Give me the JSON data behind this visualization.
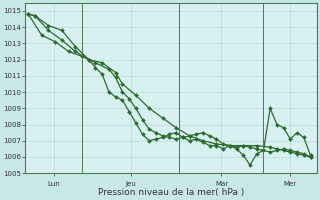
{
  "background_color": "#c8e8e8",
  "plot_bg_color": "#d8f0f0",
  "grid_color": "#b0d8d8",
  "line_color": "#2d6a2d",
  "xlabel": "Pression niveau de la mer( hPa )",
  "ylim": [
    1005,
    1015.5
  ],
  "yticks": [
    1005,
    1006,
    1007,
    1008,
    1009,
    1010,
    1011,
    1012,
    1013,
    1014,
    1015
  ],
  "xtick_labels": [
    "Lun",
    "Jeu",
    "Mar",
    "Mer"
  ],
  "series1_x": [
    0,
    1,
    3,
    5,
    7,
    9,
    10,
    11,
    12,
    13,
    14,
    15,
    16,
    17,
    18,
    19,
    20,
    21,
    22,
    23,
    24,
    25,
    26,
    27,
    28,
    29,
    30,
    31,
    32,
    33,
    34,
    35,
    36,
    37,
    38,
    39,
    40,
    41,
    42
  ],
  "series1_y": [
    1014.8,
    1014.7,
    1014.1,
    1013.8,
    1012.8,
    1012.0,
    1011.5,
    1011.1,
    1010.0,
    1009.7,
    1009.5,
    1008.8,
    1008.1,
    1007.4,
    1007.0,
    1007.1,
    1007.2,
    1007.4,
    1007.5,
    1007.2,
    1007.0,
    1007.1,
    1006.9,
    1006.7,
    1006.7,
    1006.5,
    1006.7,
    1006.5,
    1006.1,
    1005.5,
    1006.2,
    1006.4,
    1009.0,
    1008.0,
    1007.8,
    1007.1,
    1007.5,
    1007.2,
    1006.1
  ],
  "series2_x": [
    0,
    1,
    3,
    5,
    7,
    9,
    11,
    13,
    14,
    16,
    18,
    20,
    22,
    24,
    26,
    28,
    30,
    32,
    34,
    36,
    37,
    38,
    39,
    40,
    41,
    42
  ],
  "series2_y": [
    1014.8,
    1014.7,
    1013.8,
    1013.2,
    1012.5,
    1012.0,
    1011.8,
    1011.2,
    1010.5,
    1009.8,
    1009.0,
    1008.4,
    1007.8,
    1007.3,
    1007.0,
    1006.8,
    1006.7,
    1006.7,
    1006.7,
    1006.6,
    1006.5,
    1006.4,
    1006.3,
    1006.2,
    1006.1,
    1006.0
  ],
  "series3_x": [
    0,
    2,
    4,
    6,
    8,
    10,
    12,
    13,
    14,
    15,
    16,
    17,
    18,
    19,
    20,
    21,
    22,
    23,
    24,
    25,
    26,
    27,
    28,
    29,
    30,
    31,
    32,
    33,
    34,
    35,
    36,
    37,
    38,
    39,
    40,
    41,
    42
  ],
  "series3_y": [
    1014.8,
    1013.5,
    1013.1,
    1012.5,
    1012.2,
    1011.8,
    1011.4,
    1010.9,
    1010.0,
    1009.6,
    1009.0,
    1008.3,
    1007.7,
    1007.5,
    1007.3,
    1007.2,
    1007.1,
    1007.2,
    1007.3,
    1007.4,
    1007.5,
    1007.3,
    1007.1,
    1006.8,
    1006.7,
    1006.6,
    1006.7,
    1006.6,
    1006.5,
    1006.4,
    1006.3,
    1006.4,
    1006.5,
    1006.4,
    1006.3,
    1006.2,
    1006.0
  ],
  "vline_x": [
    8,
    22.5,
    35
  ],
  "xlim": [
    -0.5,
    43
  ]
}
